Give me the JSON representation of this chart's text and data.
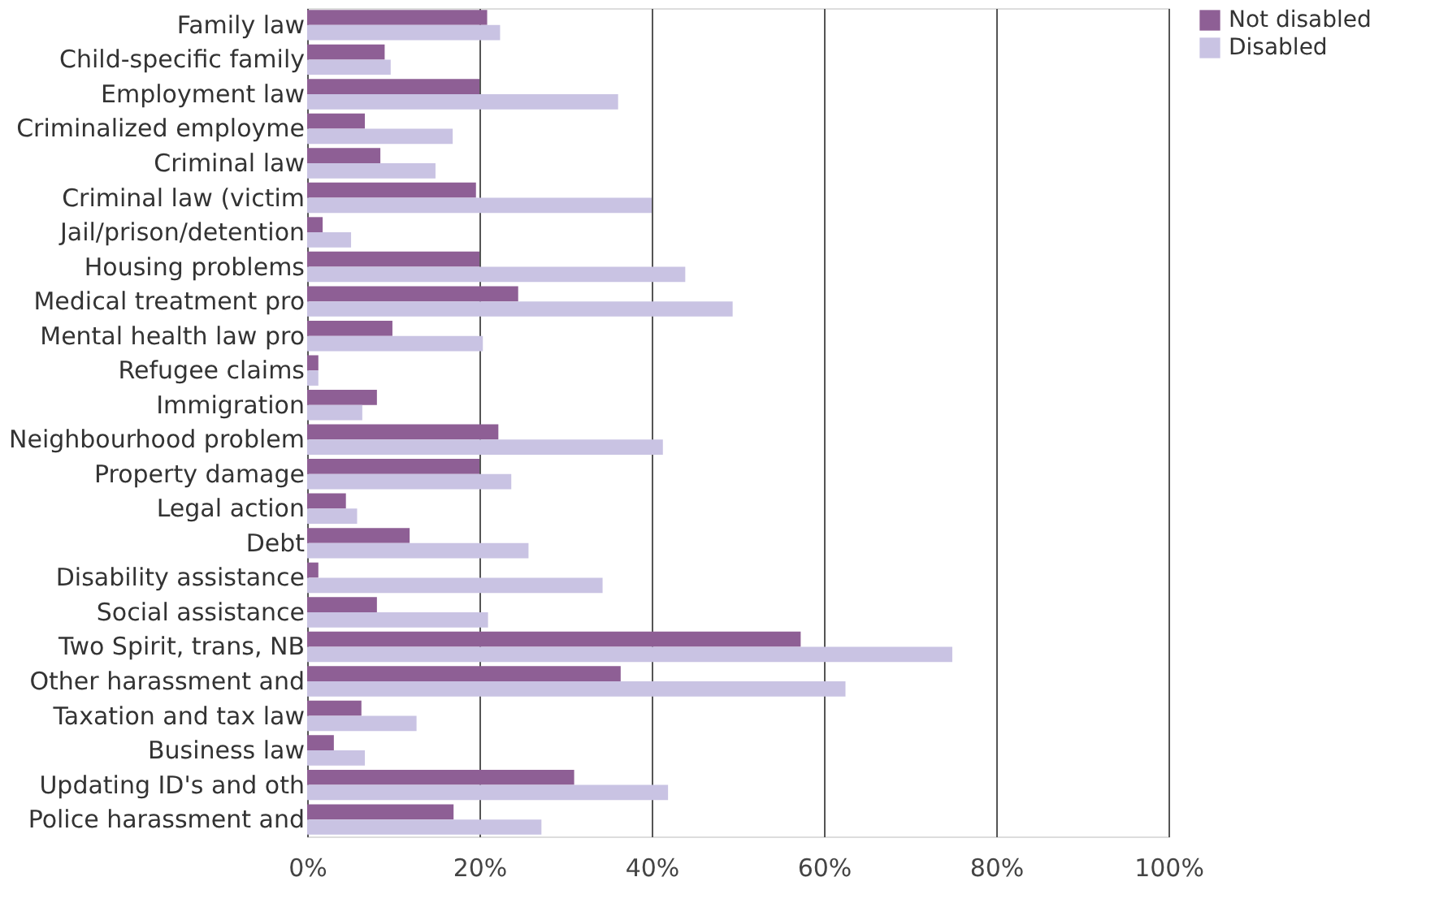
{
  "chart_data": {
    "type": "bar",
    "orientation": "horizontal",
    "categories": [
      "Family law",
      "Child-specific family",
      "Employment law",
      "Criminalized employme",
      "Criminal law",
      "Criminal law (victim",
      "Jail/prison/detention",
      "Housing problems",
      "Medical treatment pro",
      "Mental health law pro",
      "Refugee claims",
      "Immigration",
      "Neighbourhood problem",
      "Property damage",
      "Legal action",
      "Debt",
      "Disability assistance",
      "Social assistance",
      "Two Spirit, trans, NB",
      "Other harassment and",
      "Taxation and tax law",
      "Business law",
      "Updating ID's and oth",
      "Police harassment and"
    ],
    "series": [
      {
        "name": "Not disabled",
        "color": "#8e5f95",
        "values": [
          20.9,
          9.0,
          20,
          6.7,
          8.5,
          19.6,
          1.8,
          20,
          24.5,
          9.9,
          1.3,
          8.1,
          22.2,
          20,
          4.5,
          11.9,
          1.3,
          8.1,
          57.3,
          36.4,
          6.3,
          3.1,
          31,
          17
        ]
      },
      {
        "name": "Disabled",
        "color": "#c9c3e3",
        "values": [
          22.4,
          9.7,
          36.1,
          16.9,
          14.9,
          40,
          5.1,
          43.9,
          49.4,
          20.4,
          1.3,
          6.4,
          41.3,
          23.7,
          5.8,
          25.7,
          34.3,
          21,
          74.9,
          62.5,
          12.7,
          6.7,
          41.9,
          27.2
        ]
      }
    ],
    "xlim": [
      0,
      100
    ],
    "xticks": [
      {
        "value": 0,
        "label": "0%"
      },
      {
        "value": 20,
        "label": "20%"
      },
      {
        "value": 40,
        "label": "40%"
      },
      {
        "value": 60,
        "label": "60%"
      },
      {
        "value": 80,
        "label": "80%"
      },
      {
        "value": 100,
        "label": "100%"
      }
    ],
    "grid": "x",
    "legend": "top right"
  }
}
